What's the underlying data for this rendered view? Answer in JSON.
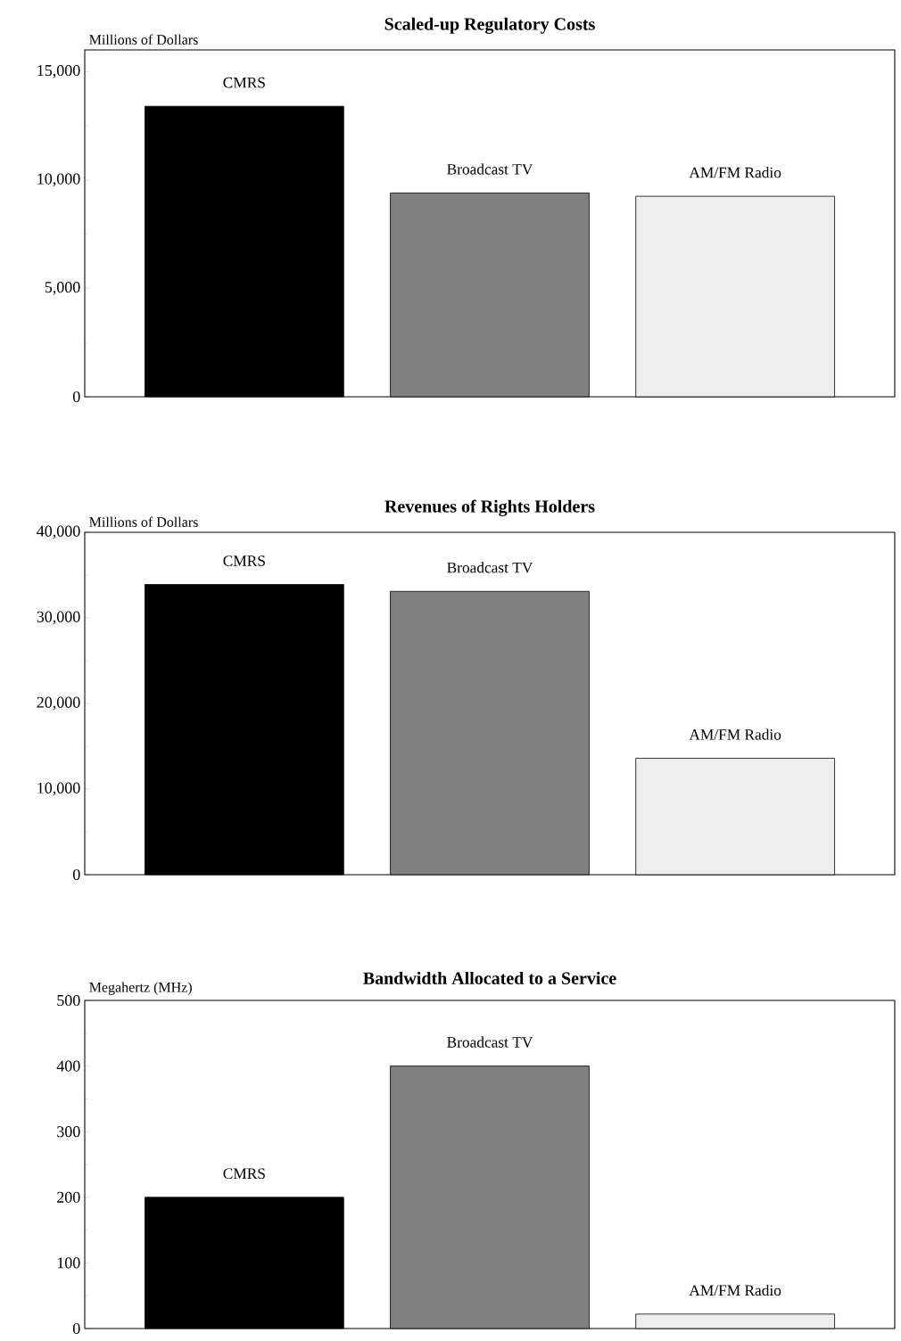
{
  "chart_data": [
    {
      "type": "bar",
      "title": "Scaled-up Regulatory Costs",
      "ylabel": "Millions of Dollars",
      "categories": [
        "CMRS",
        "Broadcast TV",
        "AM/FM Radio"
      ],
      "values": [
        13400,
        9400,
        9250
      ],
      "colors": [
        "#000000",
        "#808080",
        "#eeeeee"
      ],
      "ylim": [
        0,
        16000
      ],
      "yticks": [
        0,
        {
          "value": 5000,
          "label": "5,000"
        },
        {
          "value": 10000,
          "label": "10,000"
        },
        {
          "value": 15000,
          "label": "15,000"
        }
      ],
      "tick_labels": "y",
      "grid": false,
      "legend": false
    },
    {
      "type": "bar",
      "title": "Revenues of Rights Holders",
      "ylabel": "Millions of Dollars",
      "categories": [
        "CMRS",
        "Broadcast TV",
        "AM/FM Radio"
      ],
      "values": [
        33900,
        33100,
        13600
      ],
      "colors": [
        "#000000",
        "#808080",
        "#eeeeee"
      ],
      "ylim": [
        0,
        40000
      ],
      "yticks": [
        0,
        {
          "value": 10000,
          "label": "10,000"
        },
        {
          "value": 20000,
          "label": "20,000"
        },
        {
          "value": 30000,
          "label": "30,000"
        },
        {
          "value": 40000,
          "label": "40,000"
        }
      ],
      "tick_labels": "y",
      "grid": false,
      "legend": false
    },
    {
      "type": "bar",
      "title": "Bandwidth Allocated to a Service",
      "ylabel": "Megahertz (MHz)",
      "categories": [
        "CMRS",
        "Broadcast TV",
        "AM/FM Radio"
      ],
      "values": [
        200,
        400,
        22
      ],
      "colors": [
        "#000000",
        "#808080",
        "#eeeeee"
      ],
      "ylim": [
        0,
        500
      ],
      "yticks": [
        0,
        100,
        200,
        300,
        400,
        500
      ],
      "tick_labels": "y",
      "grid": false,
      "legend": false
    }
  ]
}
